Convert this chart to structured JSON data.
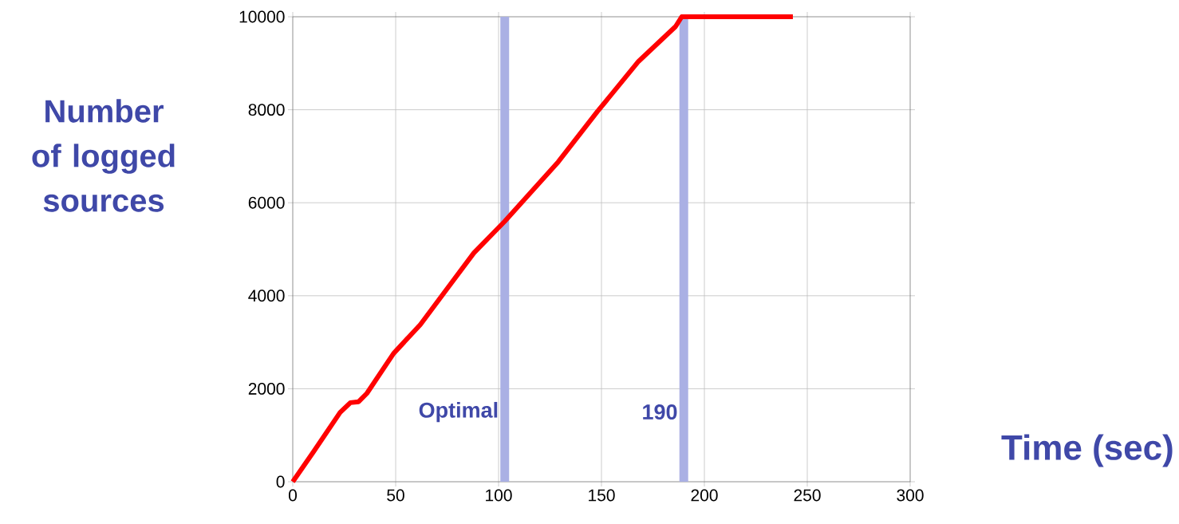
{
  "chart_data": {
    "type": "line",
    "xlabel": "Time (sec)",
    "ylabel": "Number of logged sources",
    "x": [
      0,
      10,
      23,
      28,
      32,
      36,
      49,
      62,
      75,
      88,
      103,
      129,
      148,
      168,
      186,
      189,
      243
    ],
    "series": [
      {
        "color": "#ff0000",
        "values": [
          0,
          640,
          1490,
          1700,
          1720,
          1900,
          2760,
          3380,
          4150,
          4920,
          5600,
          6880,
          7960,
          9040,
          9790,
          10000,
          10000
        ]
      }
    ],
    "xlim": [
      0,
      300
    ],
    "ylim": [
      0,
      10000
    ],
    "xticks": [
      0,
      50,
      100,
      150,
      200,
      250,
      300
    ],
    "yticks": [
      0,
      2000,
      4000,
      6000,
      8000,
      10000
    ],
    "grid": true,
    "marker": "none",
    "line_style": "solid",
    "ref_lines": [
      {
        "axis": "x",
        "value": 103,
        "label": "Optimal",
        "color": "#aab0e4"
      },
      {
        "axis": "x",
        "value": 190,
        "label": "190",
        "color": "#aab0e4"
      }
    ]
  }
}
